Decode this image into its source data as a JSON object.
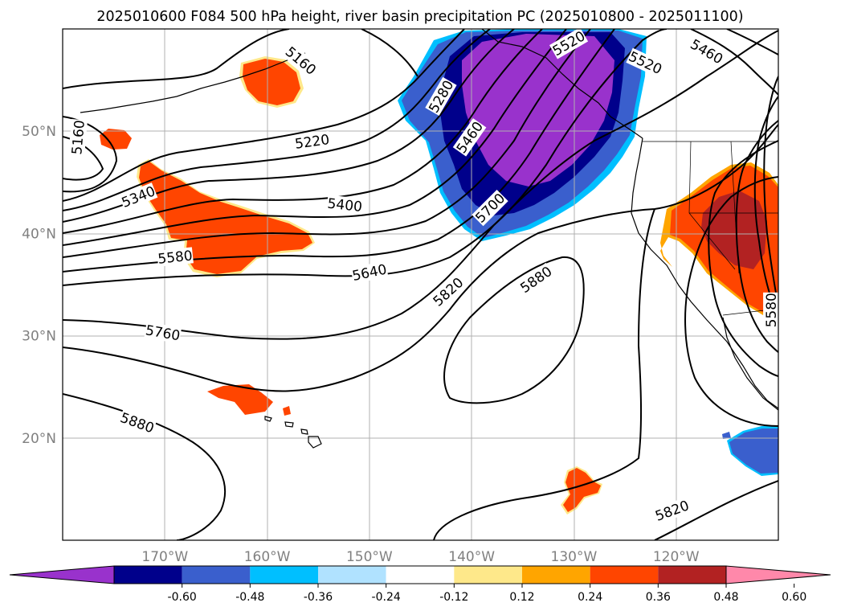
{
  "chart_data": {
    "type": "contour_map",
    "title": "2025010600 F084 500 hPa height, river basin precipitation PC (2025010800 - 2025011100)",
    "lon_range": [
      -180,
      -110
    ],
    "lat_range": [
      10,
      60
    ],
    "lat_ticks": [
      "20°N",
      "30°N",
      "40°N",
      "50°N"
    ],
    "lon_ticks": [
      "170°W",
      "160°W",
      "150°W",
      "140°W",
      "130°W",
      "120°W"
    ],
    "gridlines": true,
    "contour_labels": [
      {
        "text": "5160",
        "lon": -178.5,
        "lat": 49.4,
        "rot": -85
      },
      {
        "text": "5160",
        "lon": -156.7,
        "lat": 56.9,
        "rot": 40
      },
      {
        "text": "5220",
        "lon": -155.6,
        "lat": 49.0,
        "rot": -8
      },
      {
        "text": "5340",
        "lon": -172.6,
        "lat": 43.6,
        "rot": -22
      },
      {
        "text": "5400",
        "lon": -152.4,
        "lat": 42.8,
        "rot": 6
      },
      {
        "text": "5580",
        "lon": -169.0,
        "lat": 37.7,
        "rot": -6
      },
      {
        "text": "5640",
        "lon": -150.0,
        "lat": 36.2,
        "rot": -12
      },
      {
        "text": "5760",
        "lon": -170.2,
        "lat": 30.3,
        "rot": 10
      },
      {
        "text": "5880",
        "lon": -172.7,
        "lat": 21.5,
        "rot": 20
      },
      {
        "text": "5280",
        "lon": -143.0,
        "lat": 53.4,
        "rot": -60
      },
      {
        "text": "5460",
        "lon": -140.2,
        "lat": 49.4,
        "rot": -55
      },
      {
        "text": "5700",
        "lon": -138.2,
        "lat": 42.5,
        "rot": -45
      },
      {
        "text": "5820",
        "lon": -142.3,
        "lat": 34.3,
        "rot": -42
      },
      {
        "text": "5880",
        "lon": -133.7,
        "lat": 35.5,
        "rot": -35
      },
      {
        "text": "5520",
        "lon": -130.5,
        "lat": 58.6,
        "rot": -30
      },
      {
        "text": "5520",
        "lon": -123.0,
        "lat": 56.7,
        "rot": 25
      },
      {
        "text": "5460",
        "lon": -117.0,
        "lat": 57.8,
        "rot": 30
      },
      {
        "text": "5820",
        "lon": -120.4,
        "lat": 12.9,
        "rot": -20
      },
      {
        "text": "5580",
        "lon": -110.7,
        "lat": 32.5,
        "rot": -90
      }
    ],
    "colorbar": {
      "ticks": [
        "-0.60",
        "-0.48",
        "-0.36",
        "-0.24",
        "-0.12",
        "0.12",
        "0.24",
        "0.36",
        "0.48",
        "0.60"
      ],
      "colors": [
        "#9932cc",
        "#00008b",
        "#3a5fcd",
        "#00bfff",
        "#b0e2ff",
        "#ffffff",
        "#fee88a",
        "#ffa500",
        "#ff4500",
        "#b22222",
        "#ff88aa"
      ],
      "extend": "both"
    }
  }
}
